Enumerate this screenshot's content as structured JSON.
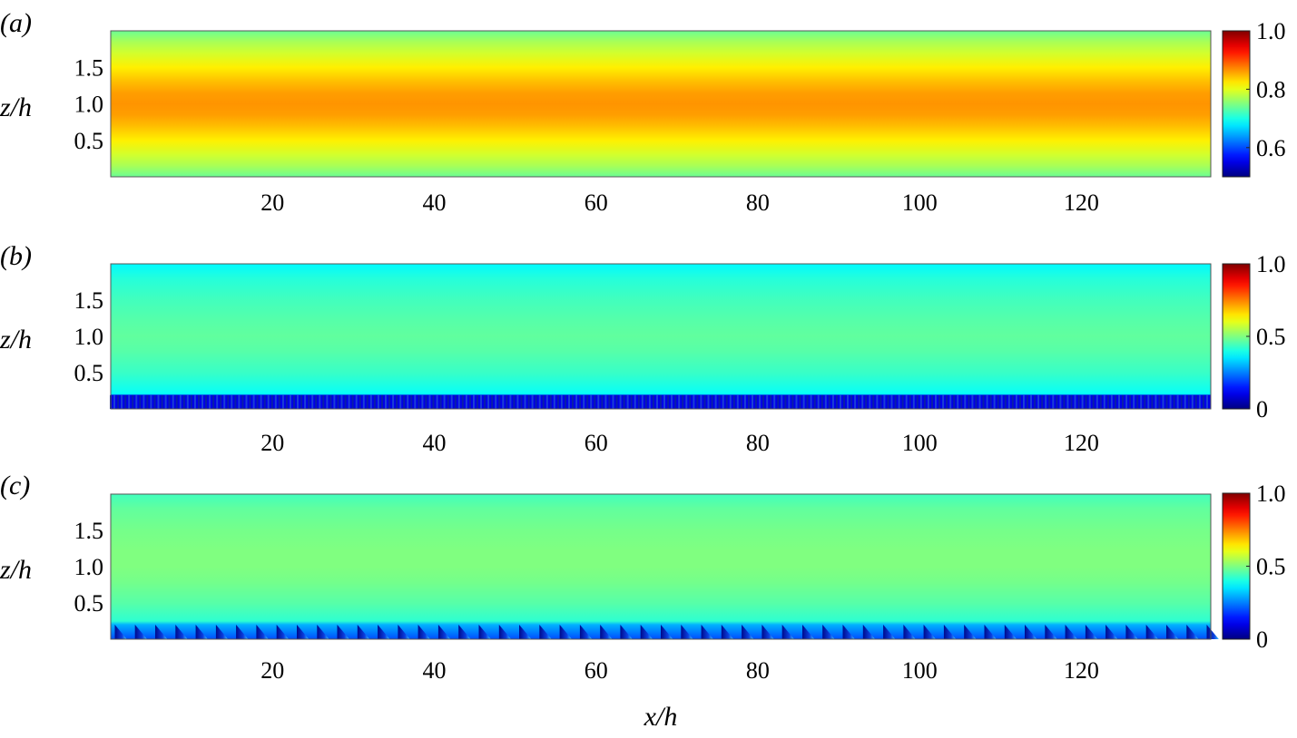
{
  "chart_data": {
    "type": "heatmap",
    "xlabel": "x/h",
    "ylabel": "z/h",
    "xlim": [
      0,
      136
    ],
    "ylim": [
      0,
      2
    ],
    "x_ticks": [
      20,
      40,
      60,
      80,
      100,
      120
    ],
    "y_ticks": [
      0.5,
      1.0,
      1.5
    ],
    "colormap": "jet",
    "panels": [
      {
        "label": "(a)",
        "clim": [
          0.5,
          1.0
        ],
        "colorbar_ticks": [
          0.6,
          0.8,
          1.0
        ],
        "profile": {
          "z": [
            0,
            0.15,
            0.3,
            0.5,
            0.7,
            0.85,
            1.0,
            1.15,
            1.3,
            1.5,
            1.7,
            1.85,
            2.0
          ],
          "value": [
            0.74,
            0.77,
            0.79,
            0.82,
            0.845,
            0.86,
            0.865,
            0.86,
            0.845,
            0.82,
            0.79,
            0.77,
            0.74
          ]
        },
        "roughness": "none"
      },
      {
        "label": "(b)",
        "clim": [
          0,
          1.0
        ],
        "colorbar_ticks": [
          0,
          0.5,
          1.0
        ],
        "profile": {
          "z": [
            0,
            0.19,
            0.2,
            0.5,
            0.8,
            1.0,
            1.2,
            1.5,
            1.8,
            2.0
          ],
          "value": [
            0.1,
            0.1,
            0.38,
            0.43,
            0.46,
            0.47,
            0.46,
            0.44,
            0.41,
            0.37
          ]
        },
        "roughness": "dense",
        "roughness_height": 0.19
      },
      {
        "label": "(c)",
        "clim": [
          0,
          1.0
        ],
        "colorbar_ticks": [
          0,
          0.5,
          1.0
        ],
        "profile": {
          "z": [
            0,
            0.2,
            0.25,
            0.5,
            0.8,
            1.0,
            1.2,
            1.5,
            1.8,
            2.0
          ],
          "value": [
            0.2,
            0.3,
            0.42,
            0.46,
            0.49,
            0.5,
            0.5,
            0.49,
            0.47,
            0.44
          ]
        },
        "roughness": "sparse",
        "roughness_height": 0.2,
        "roughness_spacing": 2.5
      }
    ]
  }
}
